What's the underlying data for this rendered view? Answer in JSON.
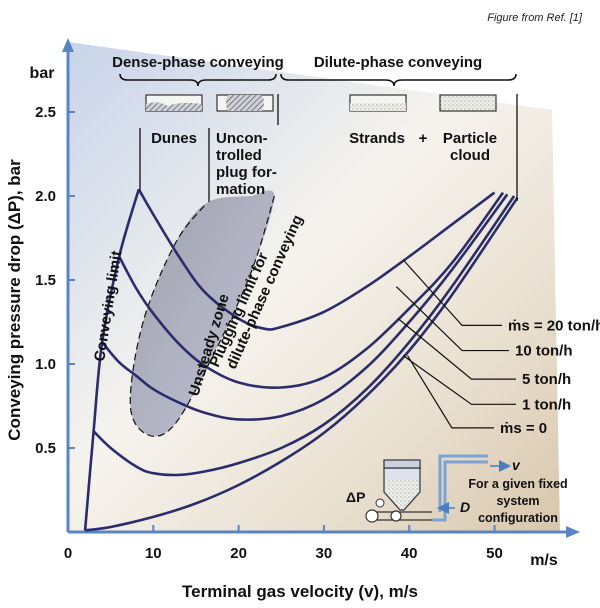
{
  "credit": "Figure from Ref. [1]",
  "chart_data": {
    "type": "line",
    "title": "",
    "xlabel": "Terminal gas velocity (v), m/s",
    "ylabel": "Conveying pressure drop (ΔP), bar",
    "x_unit": "m/s",
    "y_unit": "bar",
    "xlim": [
      0,
      58
    ],
    "ylim": [
      0,
      2.7
    ],
    "x_ticks": [
      "0",
      "10",
      "20",
      "30",
      "40",
      "50"
    ],
    "y_ticks": [
      "0.5",
      "1.0",
      "1.5",
      "2.0",
      "2.5"
    ],
    "grid": false,
    "series": [
      {
        "name": "ṁs = 20 ton/h",
        "x": [
          8.3,
          10,
          13,
          16,
          20,
          23,
          25,
          30,
          35,
          40,
          45,
          50
        ],
        "y": [
          2.04,
          1.89,
          1.64,
          1.43,
          1.27,
          1.21,
          1.22,
          1.31,
          1.46,
          1.64,
          1.83,
          2.02
        ]
      },
      {
        "name": "10 ton/h",
        "x": [
          6,
          8,
          10,
          13,
          16,
          20,
          25,
          30,
          35,
          40,
          45,
          51
        ],
        "y": [
          1.64,
          1.45,
          1.3,
          1.12,
          0.99,
          0.89,
          0.86,
          0.92,
          1.09,
          1.33,
          1.6,
          2.02
        ]
      },
      {
        "name": "5 ton/h",
        "x": [
          4,
          6,
          8,
          10,
          13,
          16,
          20,
          25,
          30,
          35,
          40,
          45,
          51.5
        ],
        "y": [
          1.13,
          1.01,
          0.93,
          0.85,
          0.77,
          0.71,
          0.67,
          0.69,
          0.79,
          0.98,
          1.25,
          1.56,
          2.01
        ]
      },
      {
        "name": "1 ton/h",
        "x": [
          3,
          5,
          8,
          10,
          13,
          16,
          20,
          25,
          30,
          35,
          40,
          45,
          52.3
        ],
        "y": [
          0.6,
          0.5,
          0.39,
          0.35,
          0.34,
          0.36,
          0.41,
          0.5,
          0.64,
          0.85,
          1.13,
          1.46,
          2.0
        ]
      },
      {
        "name": "ṁs = 0",
        "x": [
          2,
          5,
          10,
          15,
          20,
          25,
          30,
          35,
          40,
          45,
          52.7
        ],
        "y": [
          0.01,
          0.03,
          0.09,
          0.17,
          0.28,
          0.42,
          0.59,
          0.81,
          1.08,
          1.41,
          1.99
        ]
      },
      {
        "name": "Conveying limit",
        "x": [
          2,
          3,
          4,
          6,
          8.3
        ],
        "y": [
          0.01,
          0.6,
          1.13,
          1.64,
          2.04
        ]
      }
    ],
    "annotations": {
      "region_dense": "Dense-phase conveying",
      "region_dilute": "Dilute-phase conveying",
      "dunes": "Dunes",
      "uncontrolled_lines": [
        "Uncon-",
        "trolled",
        "plug for-",
        "mation"
      ],
      "strands": "Strands",
      "plus": "+",
      "particle_cloud_lines": [
        "Particle",
        "cloud"
      ],
      "conveying_limit": "Conveying limit",
      "unsteady_zone": "Unsteady zone",
      "plugging_limit_lines": [
        "Plugging limit for",
        "dilute-phase conveying"
      ],
      "inset_caption_lines": [
        "For a given fixed",
        "system",
        "configuration"
      ],
      "inset_v": "v",
      "inset_D": "D",
      "inset_dp": "ΔP"
    }
  }
}
